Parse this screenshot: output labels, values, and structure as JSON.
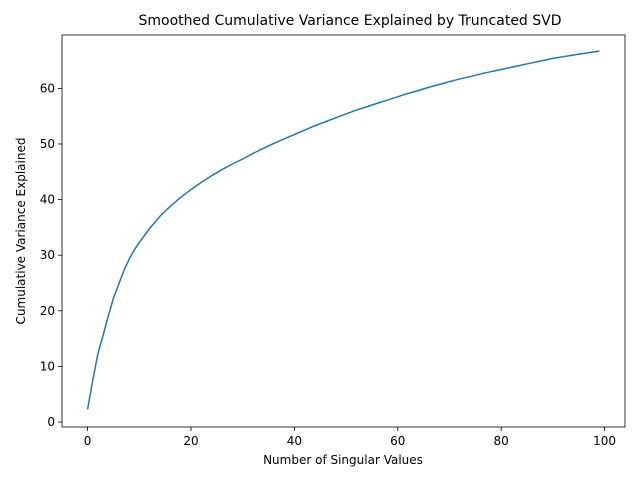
{
  "chart_data": {
    "type": "line",
    "title": "Smoothed Cumulative Variance Explained by Truncated SVD",
    "xlabel": "Number of Singular Values",
    "ylabel": "Cumulative Variance Explained",
    "xlim": [
      -4.95,
      103.95
    ],
    "ylim": [
      -0.9,
      69.6
    ],
    "xticks": [
      0,
      20,
      40,
      60,
      80,
      100
    ],
    "yticks": [
      0,
      10,
      20,
      30,
      40,
      50,
      60
    ],
    "xtick_labels": [
      "0",
      "20",
      "40",
      "60",
      "80",
      "100"
    ],
    "ytick_labels": [
      "0",
      "10",
      "20",
      "30",
      "40",
      "50",
      "60"
    ],
    "grid": false,
    "series_color": "#1f77b4",
    "x": [
      0,
      1,
      2,
      3,
      4,
      5,
      6,
      7,
      8,
      9,
      10,
      12,
      14,
      16,
      18,
      20,
      22,
      24,
      26,
      28,
      30,
      32,
      34,
      36,
      38,
      40,
      42,
      44,
      46,
      48,
      50,
      52,
      54,
      56,
      58,
      60,
      62,
      64,
      66,
      68,
      70,
      72,
      74,
      76,
      78,
      80,
      82,
      84,
      86,
      88,
      90,
      92,
      94,
      96,
      99
    ],
    "y": [
      2.3,
      7.5,
      12.3,
      15.6,
      19.0,
      22.3,
      24.7,
      27.2,
      29.2,
      30.9,
      32.3,
      34.8,
      37.0,
      38.8,
      40.4,
      41.8,
      43.1,
      44.3,
      45.4,
      46.4,
      47.3,
      48.3,
      49.2,
      50.1,
      50.9,
      51.7,
      52.5,
      53.3,
      54.0,
      54.7,
      55.4,
      56.1,
      56.7,
      57.3,
      57.9,
      58.5,
      59.1,
      59.6,
      60.2,
      60.7,
      61.2,
      61.7,
      62.1,
      62.6,
      63.0,
      63.4,
      63.8,
      64.2,
      64.6,
      65.0,
      65.4,
      65.7,
      66.0,
      66.3,
      66.7
    ]
  }
}
